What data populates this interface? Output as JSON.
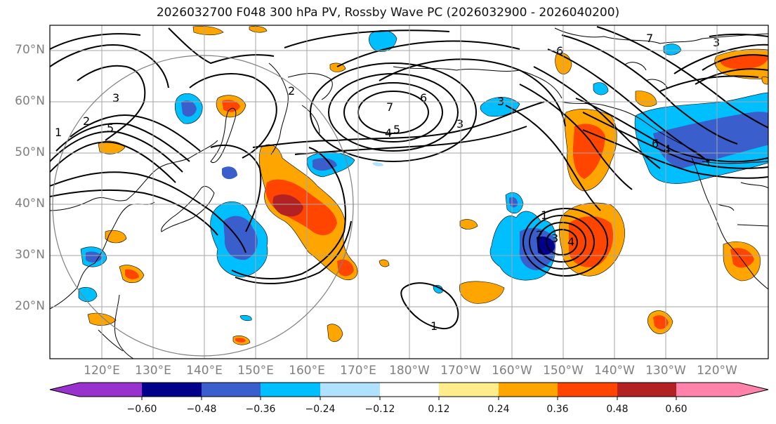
{
  "title": "2026032700 F048 300 hPa PV, Rossby Wave PC (2026032900 - 2026040200)",
  "lat_labels": [
    "70°N",
    "60°N",
    "50°N",
    "40°N",
    "30°N",
    "20°N"
  ],
  "lon_labels": [
    "120°E",
    "130°E",
    "140°E",
    "150°E",
    "160°E",
    "170°E",
    "180°W",
    "170°W",
    "160°W",
    "150°W",
    "140°W",
    "130°W",
    "120°W"
  ],
  "colorbar": {
    "ticks": [
      "−0.60",
      "−0.48",
      "−0.36",
      "−0.24",
      "−0.12",
      "0.12",
      "0.24",
      "0.36",
      "0.48",
      "0.60"
    ],
    "colors": [
      "#9932cc",
      "#00008b",
      "#3a5fcd",
      "#00bfff",
      "#b0e2ff",
      "#ffffff",
      "#ffec8b",
      "#ffa500",
      "#ff4500",
      "#b22222",
      "#ff82ab"
    ]
  },
  "contour_labels": [
    "1",
    "2",
    "3",
    "4",
    "5",
    "6",
    "7"
  ]
}
